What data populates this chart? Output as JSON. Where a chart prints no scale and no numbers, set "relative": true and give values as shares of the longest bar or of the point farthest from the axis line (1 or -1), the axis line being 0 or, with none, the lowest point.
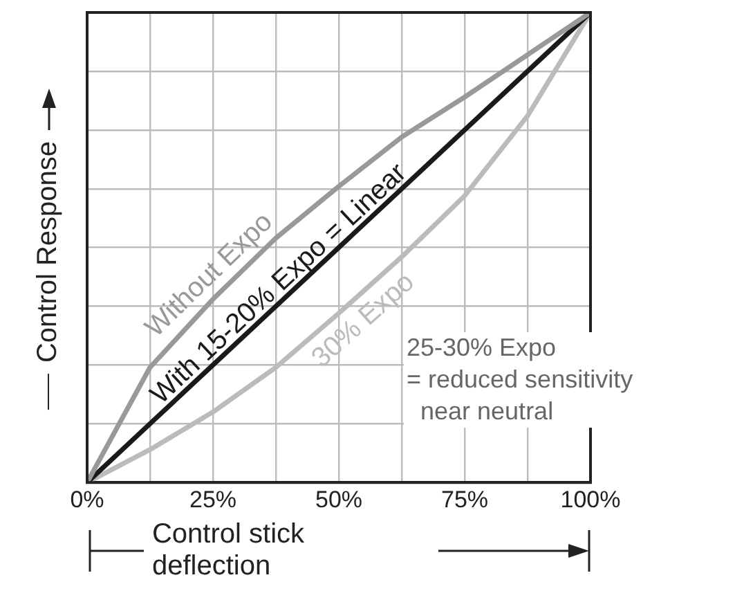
{
  "chart_data": {
    "type": "line",
    "xlabel": "Control stick deflection",
    "ylabel": "Control Response",
    "relative": true,
    "x": [
      0,
      12.5,
      25,
      37.5,
      50,
      62.5,
      75,
      87.5,
      100
    ],
    "xlim": [
      0,
      100
    ],
    "xticks": [
      {
        "value": 0,
        "label": "0%"
      },
      {
        "value": 12.5,
        "label": null
      },
      {
        "value": 25,
        "label": "25%"
      },
      {
        "value": 37.5,
        "label": null
      },
      {
        "value": 50,
        "label": "50%"
      },
      {
        "value": 62.5,
        "label": null
      },
      {
        "value": 75,
        "label": "75%"
      },
      {
        "value": 87.5,
        "label": null
      },
      {
        "value": 100,
        "label": "100%"
      }
    ],
    "tick_labels": "x",
    "grid": true,
    "legend": false,
    "marker": "none",
    "line_style": "solid",
    "series": [
      {
        "name": "Without Expo",
        "color": "#999999",
        "values": [
          0,
          0.245,
          0.39,
          0.52,
          0.63,
          0.735,
          0.82,
          0.91,
          1
        ]
      },
      {
        "name": "With 15-20% Expo = Linear",
        "color": "#1a1a1a",
        "values": [
          0,
          0.125,
          0.25,
          0.375,
          0.5,
          0.625,
          0.75,
          0.875,
          1
        ]
      },
      {
        "name": "30% Expo",
        "color": "#bbbbbb",
        "values": [
          0,
          0.07,
          0.15,
          0.245,
          0.36,
          0.48,
          0.61,
          0.78,
          1
        ]
      }
    ],
    "annotations": [
      "25-30% Expo\n= reduced sensitivity\n  near neutral"
    ]
  }
}
